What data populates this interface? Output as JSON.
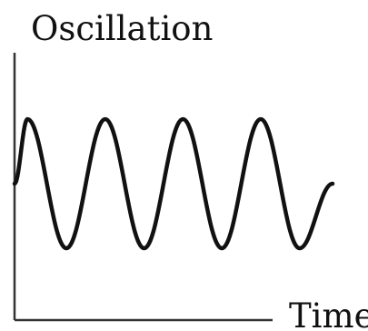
{
  "chart_data": {
    "type": "line",
    "title": "",
    "xlabel": "Time",
    "ylabel": "Oscillation",
    "grid": false,
    "legend": "none",
    "series": [
      {
        "x": [
          0.0,
          0.22,
          0.88,
          1.54,
          2.2,
          2.86,
          3.52,
          4.18,
          4.84,
          5.4
        ],
        "values": [
          0.0,
          1.0,
          -1.0,
          1.0,
          -1.0,
          1.0,
          -1.0,
          1.0,
          -1.0,
          0.0
        ],
        "style": "sinusoidal"
      }
    ],
    "colors": {
      "line": "#111111",
      "axis": "#333333",
      "background": "#ffffff"
    }
  }
}
